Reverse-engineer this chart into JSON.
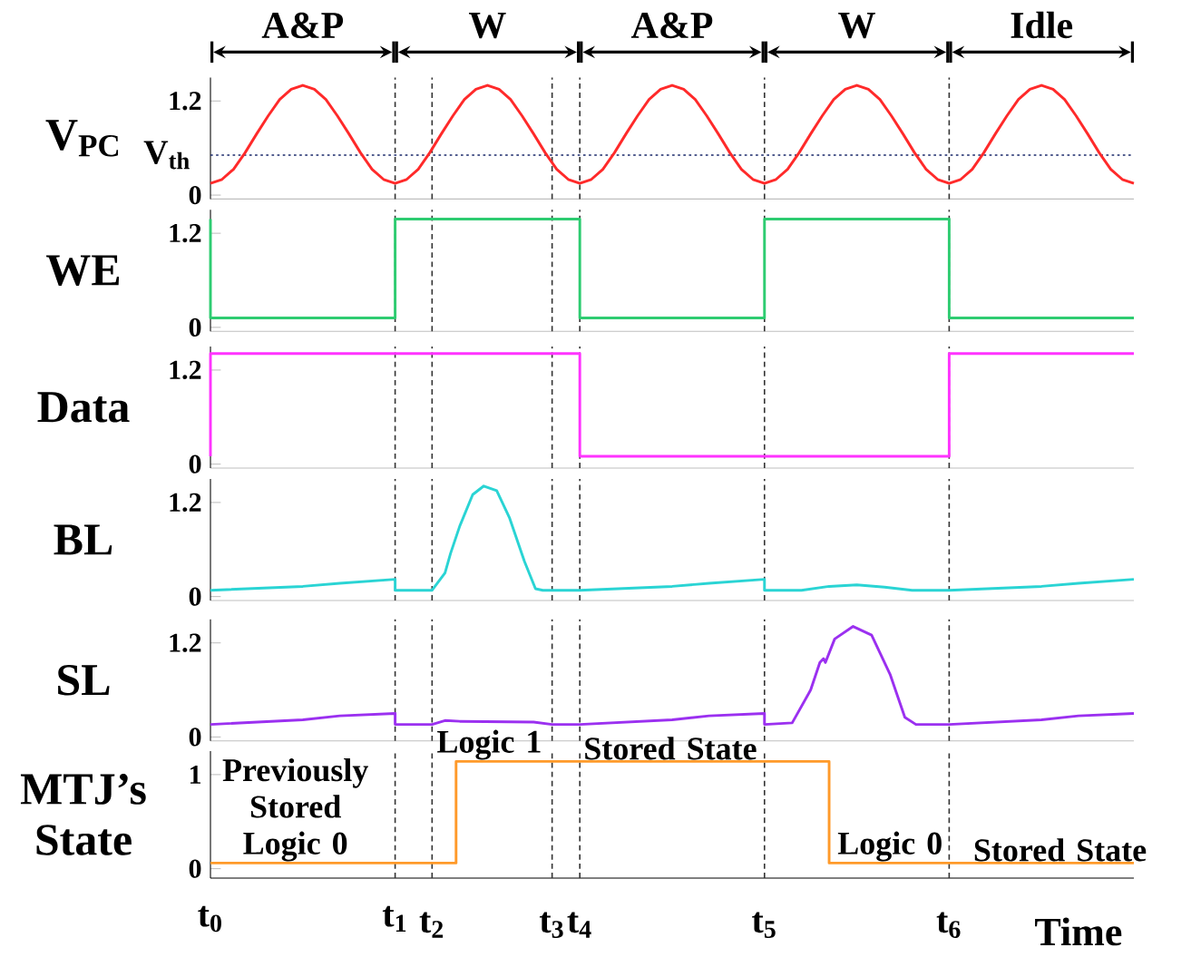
{
  "chart_data": [
    {
      "type": "line",
      "ylabel": "V$_{PC}$",
      "xlim": [
        0,
        5
      ],
      "ylim": [
        -0.05,
        1.5
      ],
      "yticks": [
        0,
        1.2
      ],
      "tick_labels": "y",
      "series": [
        {
          "color": "#ff2a2a",
          "x": [
            0,
            0.0625,
            0.125,
            0.1875,
            0.25,
            0.3125,
            0.375,
            0.4375,
            0.5,
            0.5625,
            0.625,
            0.6875,
            0.75,
            0.8125,
            0.875,
            0.9375,
            1,
            1.0625,
            1.125,
            1.1875,
            1.25,
            1.3125,
            1.375,
            1.4375,
            1.5,
            1.5625,
            1.625,
            1.6875,
            1.75,
            1.8125,
            1.875,
            1.9375,
            2,
            2.0625,
            2.125,
            2.1875,
            2.25,
            2.3125,
            2.375,
            2.4375,
            2.5,
            2.5625,
            2.625,
            2.6875,
            2.75,
            2.8125,
            2.875,
            2.9375,
            3,
            3.0625,
            3.125,
            3.1875,
            3.25,
            3.3125,
            3.375,
            3.4375,
            3.5,
            3.5625,
            3.625,
            3.6875,
            3.75,
            3.8125,
            3.875,
            3.9375,
            4,
            4.0625,
            4.125,
            4.1875,
            4.25,
            4.3125,
            4.375,
            4.4375,
            4.5,
            4.5625,
            4.625,
            4.6875,
            4.75,
            4.8125,
            4.875,
            4.9375,
            5
          ],
          "values": [
            0.15,
            0.2,
            0.33,
            0.54,
            0.78,
            1.01,
            1.22,
            1.35,
            1.4,
            1.35,
            1.22,
            1.01,
            0.78,
            0.54,
            0.33,
            0.2,
            0.15,
            0.2,
            0.33,
            0.54,
            0.78,
            1.01,
            1.22,
            1.35,
            1.4,
            1.35,
            1.22,
            1.01,
            0.78,
            0.54,
            0.33,
            0.2,
            0.15,
            0.2,
            0.33,
            0.54,
            0.78,
            1.01,
            1.22,
            1.35,
            1.4,
            1.35,
            1.22,
            1.01,
            0.78,
            0.54,
            0.33,
            0.2,
            0.15,
            0.2,
            0.33,
            0.54,
            0.78,
            1.01,
            1.22,
            1.35,
            1.4,
            1.35,
            1.22,
            1.01,
            0.78,
            0.54,
            0.33,
            0.2,
            0.15,
            0.2,
            0.33,
            0.54,
            0.78,
            1.01,
            1.22,
            1.35,
            1.4,
            1.35,
            1.22,
            1.01,
            0.78,
            0.54,
            0.33,
            0.2,
            0.15
          ]
        }
      ],
      "ref_lines": [
        {
          "axis": "y",
          "value": 0.51,
          "label": "V$_{th}$",
          "color": "#1b2a6b",
          "line_style": "dotted"
        },
        {
          "axis": "x",
          "value": 1,
          "color": "#333333",
          "line_style": "dashed"
        },
        {
          "axis": "x",
          "value": 1.2,
          "color": "#333333",
          "line_style": "dashed"
        },
        {
          "axis": "x",
          "value": 1.85,
          "color": "#333333",
          "line_style": "dashed"
        },
        {
          "axis": "x",
          "value": 2,
          "color": "#333333",
          "line_style": "dashed"
        },
        {
          "axis": "x",
          "value": 3,
          "color": "#333333",
          "line_style": "dashed"
        },
        {
          "axis": "x",
          "value": 4,
          "color": "#333333",
          "line_style": "dashed"
        }
      ],
      "annotations": [
        "A&P",
        "W",
        "A&P",
        "W",
        "Idle"
      ]
    },
    {
      "type": "line",
      "ylabel": "WE",
      "xlim": [
        0,
        5
      ],
      "ylim": [
        -0.05,
        1.5
      ],
      "yticks": [
        0,
        1.2
      ],
      "tick_labels": "y",
      "series": [
        {
          "color": "#2ecc71",
          "x": [
            0,
            0,
            1,
            1,
            2,
            2,
            3,
            3,
            4,
            4,
            5
          ],
          "values": [
            1.38,
            0.12,
            0.12,
            1.38,
            1.38,
            0.12,
            0.12,
            1.38,
            1.38,
            0.12,
            0.12
          ]
        }
      ],
      "ref_lines": [
        {
          "axis": "x",
          "value": 1,
          "color": "#333333",
          "line_style": "dashed"
        },
        {
          "axis": "x",
          "value": 1.2,
          "color": "#333333",
          "line_style": "dashed"
        },
        {
          "axis": "x",
          "value": 1.85,
          "color": "#333333",
          "line_style": "dashed"
        },
        {
          "axis": "x",
          "value": 2,
          "color": "#333333",
          "line_style": "dashed"
        },
        {
          "axis": "x",
          "value": 3,
          "color": "#333333",
          "line_style": "dashed"
        },
        {
          "axis": "x",
          "value": 4,
          "color": "#333333",
          "line_style": "dashed"
        }
      ]
    },
    {
      "type": "line",
      "ylabel": "Data",
      "xlim": [
        0,
        5
      ],
      "ylim": [
        -0.05,
        1.5
      ],
      "yticks": [
        0,
        1.2
      ],
      "tick_labels": "y",
      "series": [
        {
          "color": "#ff33ff",
          "x": [
            0,
            0,
            2,
            2,
            4,
            4,
            5
          ],
          "values": [
            0.1,
            1.41,
            1.41,
            0.1,
            0.1,
            1.41,
            1.41
          ]
        }
      ],
      "ref_lines": [
        {
          "axis": "x",
          "value": 1,
          "color": "#333333",
          "line_style": "dashed"
        },
        {
          "axis": "x",
          "value": 1.2,
          "color": "#333333",
          "line_style": "dashed"
        },
        {
          "axis": "x",
          "value": 1.85,
          "color": "#333333",
          "line_style": "dashed"
        },
        {
          "axis": "x",
          "value": 2,
          "color": "#333333",
          "line_style": "dashed"
        },
        {
          "axis": "x",
          "value": 3,
          "color": "#333333",
          "line_style": "dashed"
        },
        {
          "axis": "x",
          "value": 4,
          "color": "#333333",
          "line_style": "dashed"
        }
      ]
    },
    {
      "type": "line",
      "ylabel": "BL",
      "xlim": [
        0,
        5
      ],
      "ylim": [
        -0.05,
        1.5
      ],
      "yticks": [
        0,
        1.2
      ],
      "tick_labels": "y",
      "series": [
        {
          "color": "#2ad4d4",
          "x": [
            0,
            0.5,
            0.7,
            1,
            1,
            1.2,
            1.27,
            1.3,
            1.35,
            1.42,
            1.48,
            1.55,
            1.62,
            1.7,
            1.76,
            1.8,
            2,
            2.5,
            2.7,
            3,
            3,
            3.2,
            3.35,
            3.5,
            3.65,
            3.8,
            4,
            4.5,
            4.7,
            5
          ],
          "values": [
            0.08,
            0.13,
            0.17,
            0.22,
            0.08,
            0.08,
            0.3,
            0.55,
            0.9,
            1.3,
            1.41,
            1.35,
            1.0,
            0.45,
            0.1,
            0.08,
            0.08,
            0.13,
            0.17,
            0.22,
            0.08,
            0.08,
            0.13,
            0.15,
            0.12,
            0.08,
            0.08,
            0.13,
            0.17,
            0.22
          ]
        }
      ],
      "ref_lines": [
        {
          "axis": "x",
          "value": 1,
          "color": "#333333",
          "line_style": "dashed"
        },
        {
          "axis": "x",
          "value": 1.2,
          "color": "#333333",
          "line_style": "dashed"
        },
        {
          "axis": "x",
          "value": 1.85,
          "color": "#333333",
          "line_style": "dashed"
        },
        {
          "axis": "x",
          "value": 2,
          "color": "#333333",
          "line_style": "dashed"
        },
        {
          "axis": "x",
          "value": 3,
          "color": "#333333",
          "line_style": "dashed"
        },
        {
          "axis": "x",
          "value": 4,
          "color": "#333333",
          "line_style": "dashed"
        }
      ]
    },
    {
      "type": "line",
      "ylabel": "SL",
      "xlim": [
        0,
        5
      ],
      "ylim": [
        -0.05,
        1.5
      ],
      "yticks": [
        0,
        1.2
      ],
      "tick_labels": "y",
      "series": [
        {
          "color": "#9b30f0",
          "x": [
            0,
            0.5,
            0.7,
            1,
            1,
            1.2,
            1.27,
            1.35,
            1.75,
            1.85,
            2,
            2.5,
            2.7,
            3,
            3,
            3.15,
            3.25,
            3.3,
            3.32,
            3.33,
            3.38,
            3.48,
            3.58,
            3.68,
            3.76,
            3.82,
            4,
            4.5,
            4.7,
            5
          ],
          "values": [
            0.16,
            0.22,
            0.27,
            0.3,
            0.16,
            0.16,
            0.21,
            0.2,
            0.19,
            0.16,
            0.16,
            0.22,
            0.27,
            0.3,
            0.16,
            0.18,
            0.6,
            0.95,
            1.0,
            0.95,
            1.25,
            1.41,
            1.3,
            0.8,
            0.25,
            0.16,
            0.16,
            0.22,
            0.27,
            0.3
          ]
        }
      ],
      "ref_lines": [
        {
          "axis": "x",
          "value": 1,
          "color": "#333333",
          "line_style": "dashed"
        },
        {
          "axis": "x",
          "value": 1.2,
          "color": "#333333",
          "line_style": "dashed"
        },
        {
          "axis": "x",
          "value": 1.85,
          "color": "#333333",
          "line_style": "dashed"
        },
        {
          "axis": "x",
          "value": 2,
          "color": "#333333",
          "line_style": "dashed"
        },
        {
          "axis": "x",
          "value": 3,
          "color": "#333333",
          "line_style": "dashed"
        },
        {
          "axis": "x",
          "value": 4,
          "color": "#333333",
          "line_style": "dashed"
        }
      ]
    },
    {
      "type": "line",
      "ylabel": "MTJ’s State",
      "xlabel": "Time",
      "xlim": [
        0,
        5
      ],
      "ylim": [
        -0.1,
        1.25
      ],
      "yticks": [
        0,
        1
      ],
      "xticks": [
        {
          "value": 0,
          "label": "t$_{0}$"
        },
        {
          "value": 1,
          "label": "t$_{1}$"
        }
      ],
      "series": [
        {
          "color": "#ff9a2a",
          "x": [
            0,
            1.33,
            1.33,
            3.35,
            3.35,
            5
          ],
          "values": [
            0.06,
            0.06,
            1.14,
            1.14,
            0.06,
            0.06
          ]
        }
      ],
      "ref_lines": [
        {
          "axis": "x",
          "value": 1,
          "color": "#333333",
          "line_style": "dashed"
        },
        {
          "axis": "x",
          "value": 1.2,
          "label": "t$_{2}$",
          "color": "#333333",
          "line_style": "dashed"
        },
        {
          "axis": "x",
          "value": 1.85,
          "label": "t$_{3}$",
          "color": "#333333",
          "line_style": "dashed"
        },
        {
          "axis": "x",
          "value": 2,
          "label": "t$_{4}$",
          "color": "#333333",
          "line_style": "dashed"
        },
        {
          "axis": "x",
          "value": 3,
          "label": "t$_{5}$",
          "color": "#333333",
          "line_style": "dashed"
        },
        {
          "axis": "x",
          "value": 4,
          "label": "t$_{6}$",
          "color": "#333333",
          "line_style": "dashed"
        }
      ],
      "annotations": [
        {
          "text": "Previously Stored Logic 0",
          "x": 0.46,
          "y": 0.06
        },
        {
          "text": "Logic 1",
          "x": 1.51,
          "y": 1.14
        },
        {
          "text": "Stored State",
          "x": 2.49,
          "y": 1.14
        },
        {
          "text": "Logic 0",
          "x": 3.68,
          "y": 0.06
        },
        {
          "text": "Stored State",
          "x": 4.6,
          "y": 0.06
        }
      ]
    }
  ]
}
